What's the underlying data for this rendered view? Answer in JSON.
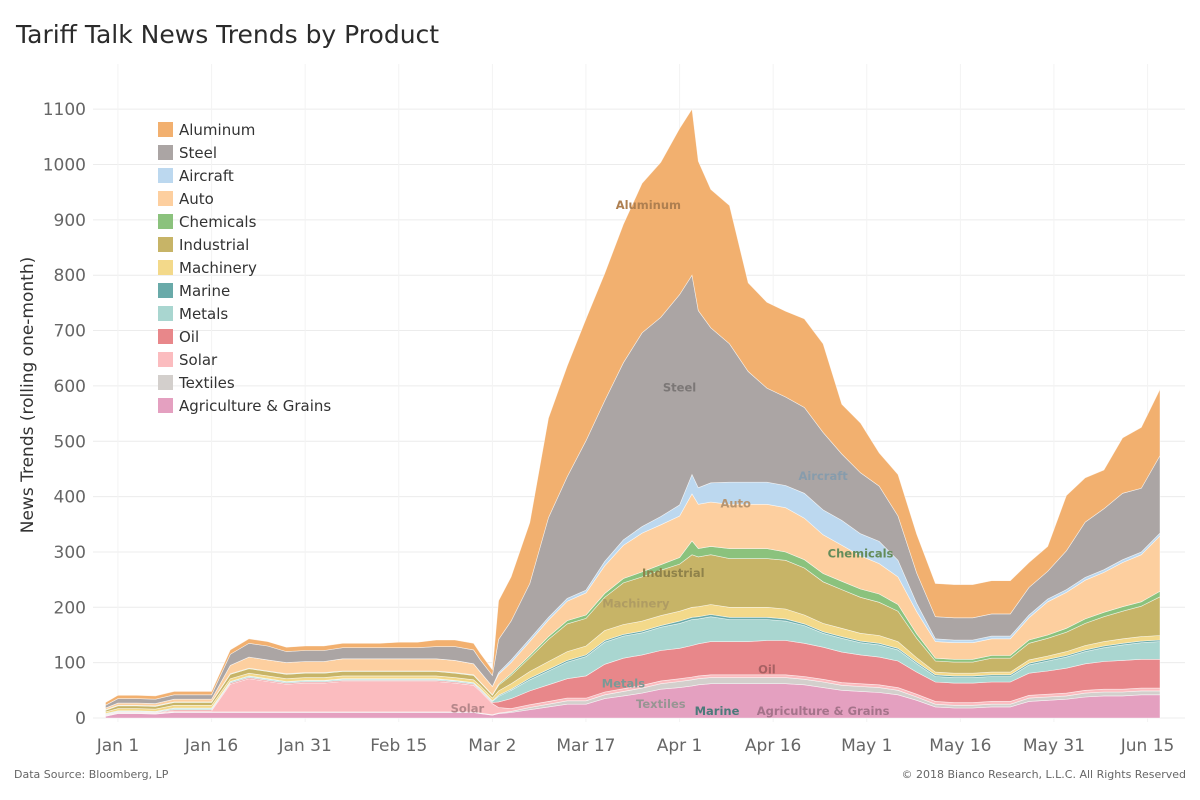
{
  "title": "Tariff Talk News Trends by Product",
  "footer": {
    "source": "Data Source: Bloomberg, LP",
    "copyright": "© 2018 Bianco Research, L.L.C. All Rights Reserved"
  },
  "chart_data": {
    "type": "area",
    "stacked": true,
    "ylabel": "News Trends (rolling one-month)",
    "xlabel": "",
    "ylim": [
      0,
      1200
    ],
    "yticks": [
      0,
      100,
      200,
      300,
      400,
      500,
      600,
      700,
      800,
      900,
      1000,
      1100
    ],
    "x_ticks": [
      {
        "label": "Jan 1",
        "day": 0
      },
      {
        "label": "Jan 16",
        "day": 15
      },
      {
        "label": "Jan 31",
        "day": 30
      },
      {
        "label": "Feb 15",
        "day": 45
      },
      {
        "label": "Mar 2",
        "day": 60
      },
      {
        "label": "Mar 17",
        "day": 75
      },
      {
        "label": "Apr 1",
        "day": 90
      },
      {
        "label": "Apr 16",
        "day": 105
      },
      {
        "label": "May 1",
        "day": 120
      },
      {
        "label": "May 16",
        "day": 135
      },
      {
        "label": "May 31",
        "day": 150
      },
      {
        "label": "Jun 15",
        "day": 165
      }
    ],
    "x_days": [
      -2,
      0,
      3,
      6,
      9,
      12,
      15,
      18,
      21,
      24,
      27,
      30,
      33,
      36,
      39,
      42,
      45,
      48,
      51,
      54,
      57,
      58,
      60,
      61,
      63,
      66,
      69,
      72,
      75,
      78,
      81,
      84,
      87,
      90,
      92,
      93,
      95,
      98,
      101,
      104,
      107,
      110,
      113,
      116,
      119,
      122,
      125,
      128,
      131,
      134,
      137,
      140,
      143,
      146,
      149,
      152,
      155,
      158,
      161,
      164,
      167
    ],
    "legend_position": "top-left",
    "grid": true,
    "series": [
      {
        "name": "Agriculture & Grains",
        "label": "Agriculture & Grains",
        "color": "#e4a0c0",
        "label_at": {
          "day": 113,
          "value": 5
        },
        "values": [
          3,
          8,
          8,
          7,
          10,
          10,
          10,
          10,
          10,
          10,
          10,
          10,
          10,
          10,
          10,
          10,
          10,
          10,
          10,
          10,
          10,
          8,
          5,
          8,
          10,
          15,
          20,
          25,
          25,
          35,
          40,
          45,
          52,
          55,
          58,
          60,
          62,
          62,
          62,
          62,
          62,
          60,
          55,
          50,
          48,
          46,
          42,
          32,
          20,
          18,
          18,
          20,
          20,
          30,
          32,
          34,
          38,
          40,
          40,
          42,
          42
        ]
      },
      {
        "name": "Textiles",
        "label": "Textiles",
        "color": "#d3cfcc",
        "label_at": {
          "day": 87,
          "value": 18
        },
        "values": [
          1,
          1,
          1,
          1,
          1,
          1,
          1,
          1,
          1,
          1,
          1,
          1,
          1,
          1,
          1,
          1,
          1,
          1,
          1,
          1,
          1,
          1,
          1,
          1,
          2,
          4,
          5,
          6,
          6,
          7,
          8,
          9,
          10,
          11,
          11,
          11,
          11,
          11,
          11,
          11,
          11,
          10,
          10,
          9,
          9,
          9,
          8,
          6,
          5,
          5,
          5,
          5,
          5,
          6,
          6,
          6,
          7,
          7,
          7,
          7,
          7
        ]
      },
      {
        "name": "Solar",
        "label": "Solar",
        "color": "#fbbcbf",
        "label_at": {
          "day": 56,
          "value": 10
        },
        "values": [
          1,
          1,
          1,
          1,
          2,
          2,
          2,
          50,
          60,
          55,
          50,
          52,
          52,
          55,
          55,
          55,
          55,
          55,
          55,
          52,
          48,
          40,
          20,
          10,
          5,
          5,
          5,
          5,
          5,
          5,
          5,
          5,
          5,
          5,
          5,
          5,
          5,
          5,
          5,
          5,
          5,
          5,
          5,
          5,
          5,
          5,
          5,
          5,
          5,
          5,
          5,
          5,
          5,
          5,
          5,
          5,
          5,
          5,
          5,
          5,
          5
        ]
      },
      {
        "name": "Oil",
        "label": "Oil",
        "color": "#e8878a",
        "label_at": {
          "day": 104,
          "value": 80
        },
        "values": [
          1,
          1,
          1,
          1,
          2,
          2,
          2,
          2,
          2,
          2,
          2,
          2,
          2,
          2,
          2,
          2,
          2,
          2,
          2,
          2,
          2,
          2,
          2,
          10,
          18,
          25,
          30,
          35,
          40,
          50,
          55,
          55,
          55,
          55,
          57,
          58,
          60,
          60,
          60,
          62,
          62,
          60,
          58,
          55,
          52,
          50,
          48,
          40,
          35,
          35,
          35,
          35,
          35,
          40,
          42,
          45,
          48,
          50,
          52,
          52,
          52
        ]
      },
      {
        "name": "Metals",
        "label": "Metals",
        "color": "#a9d6d0",
        "label_at": {
          "day": 81,
          "value": 55
        },
        "values": [
          1,
          1,
          1,
          1,
          2,
          2,
          2,
          2,
          2,
          2,
          2,
          2,
          2,
          2,
          2,
          2,
          2,
          2,
          2,
          2,
          2,
          2,
          2,
          10,
          15,
          20,
          25,
          30,
          35,
          40,
          40,
          40,
          42,
          45,
          47,
          45,
          45,
          40,
          40,
          38,
          35,
          32,
          25,
          25,
          22,
          22,
          20,
          15,
          10,
          10,
          10,
          10,
          10,
          15,
          18,
          20,
          22,
          25,
          28,
          30,
          32
        ]
      },
      {
        "name": "Marine",
        "label": "Marine",
        "color": "#69aaa9",
        "label_at": {
          "day": 96,
          "value": 5
        },
        "values": [
          1,
          1,
          1,
          1,
          1,
          1,
          1,
          1,
          1,
          1,
          1,
          1,
          1,
          1,
          1,
          1,
          1,
          1,
          1,
          1,
          1,
          1,
          1,
          2,
          2,
          3,
          3,
          3,
          3,
          3,
          3,
          3,
          3,
          4,
          4,
          4,
          4,
          4,
          4,
          4,
          4,
          3,
          3,
          3,
          3,
          3,
          3,
          3,
          3,
          3,
          3,
          3,
          3,
          3,
          3,
          3,
          3,
          3,
          3,
          3,
          3
        ]
      },
      {
        "name": "Machinery",
        "label": "Machinery",
        "color": "#f3d98a",
        "label_at": {
          "day": 83,
          "value": 200
        },
        "values": [
          3,
          4,
          4,
          4,
          5,
          5,
          5,
          5,
          5,
          5,
          5,
          5,
          5,
          5,
          5,
          5,
          5,
          5,
          5,
          5,
          5,
          5,
          5,
          8,
          10,
          12,
          14,
          16,
          16,
          18,
          18,
          18,
          18,
          18,
          18,
          18,
          18,
          18,
          18,
          18,
          18,
          16,
          15,
          15,
          14,
          14,
          12,
          8,
          5,
          5,
          5,
          5,
          5,
          6,
          6,
          7,
          8,
          8,
          8,
          8,
          8
        ]
      },
      {
        "name": "Industrial",
        "label": "Industrial",
        "color": "#c7b467",
        "label_at": {
          "day": 89,
          "value": 255
        },
        "values": [
          3,
          5,
          5,
          5,
          5,
          5,
          5,
          8,
          8,
          8,
          8,
          8,
          8,
          8,
          8,
          8,
          8,
          8,
          8,
          8,
          8,
          6,
          5,
          10,
          15,
          25,
          40,
          50,
          50,
          60,
          75,
          80,
          82,
          85,
          95,
          90,
          90,
          88,
          88,
          88,
          88,
          85,
          75,
          70,
          65,
          60,
          55,
          35,
          20,
          20,
          20,
          25,
          25,
          30,
          32,
          35,
          40,
          45,
          50,
          55,
          70
        ]
      },
      {
        "name": "Chemicals",
        "label": "Chemicals",
        "color": "#8bc27d",
        "label_at": {
          "day": 119,
          "value": 290
        },
        "values": [
          1,
          1,
          1,
          1,
          1,
          1,
          1,
          1,
          1,
          1,
          1,
          1,
          1,
          1,
          1,
          1,
          1,
          1,
          1,
          1,
          1,
          1,
          1,
          2,
          3,
          4,
          5,
          6,
          6,
          7,
          8,
          9,
          10,
          12,
          25,
          15,
          15,
          18,
          18,
          18,
          15,
          15,
          15,
          15,
          15,
          15,
          12,
          8,
          5,
          5,
          5,
          5,
          5,
          6,
          6,
          7,
          8,
          8,
          8,
          8,
          10
        ]
      },
      {
        "name": "Auto",
        "label": "Auto",
        "color": "#fdcf9f",
        "label_at": {
          "day": 99,
          "value": 380
        },
        "values": [
          3,
          4,
          4,
          4,
          5,
          5,
          5,
          15,
          20,
          20,
          20,
          20,
          20,
          22,
          22,
          22,
          22,
          22,
          22,
          22,
          20,
          18,
          15,
          18,
          20,
          25,
          30,
          35,
          40,
          50,
          60,
          70,
          72,
          75,
          85,
          80,
          80,
          80,
          80,
          80,
          80,
          75,
          70,
          65,
          60,
          55,
          50,
          40,
          30,
          30,
          30,
          30,
          30,
          40,
          60,
          65,
          70,
          72,
          80,
          85,
          100
        ]
      },
      {
        "name": "Aircraft",
        "label": "Aircraft",
        "color": "#bcd8ef",
        "label_at": {
          "day": 113,
          "value": 430
        },
        "values": [
          0,
          0,
          0,
          0,
          0,
          0,
          0,
          0,
          0,
          0,
          0,
          0,
          0,
          0,
          0,
          0,
          0,
          0,
          0,
          0,
          0,
          0,
          0,
          3,
          5,
          5,
          5,
          5,
          5,
          8,
          10,
          12,
          15,
          20,
          35,
          30,
          35,
          40,
          40,
          40,
          40,
          45,
          45,
          45,
          40,
          40,
          30,
          15,
          5,
          5,
          5,
          5,
          5,
          5,
          5,
          5,
          5,
          5,
          5,
          5,
          5
        ]
      },
      {
        "name": "Steel",
        "label": "Steel",
        "color": "#aba5a4",
        "label_at": {
          "day": 90,
          "value": 590
        },
        "values": [
          5,
          8,
          8,
          8,
          8,
          8,
          8,
          20,
          25,
          25,
          20,
          20,
          20,
          20,
          20,
          20,
          20,
          20,
          22,
          25,
          25,
          22,
          20,
          60,
          70,
          100,
          180,
          220,
          270,
          290,
          320,
          350,
          360,
          380,
          360,
          320,
          280,
          250,
          200,
          170,
          160,
          155,
          140,
          120,
          110,
          100,
          80,
          55,
          40,
          40,
          40,
          40,
          40,
          50,
          50,
          70,
          100,
          110,
          120,
          115,
          140
        ]
      },
      {
        "name": "Aluminum",
        "label": "Aluminum",
        "color": "#f2b06f",
        "label_at": {
          "day": 85,
          "value": 920
        },
        "values": [
          5,
          6,
          6,
          6,
          6,
          6,
          6,
          8,
          8,
          8,
          8,
          8,
          8,
          8,
          8,
          8,
          10,
          10,
          12,
          12,
          12,
          12,
          10,
          70,
          80,
          110,
          180,
          200,
          220,
          230,
          250,
          270,
          280,
          300,
          300,
          270,
          250,
          250,
          160,
          155,
          155,
          160,
          160,
          90,
          90,
          60,
          75,
          70,
          60,
          60,
          60,
          60,
          60,
          45,
          45,
          100,
          80,
          70,
          100,
          110,
          120
        ]
      }
    ]
  }
}
